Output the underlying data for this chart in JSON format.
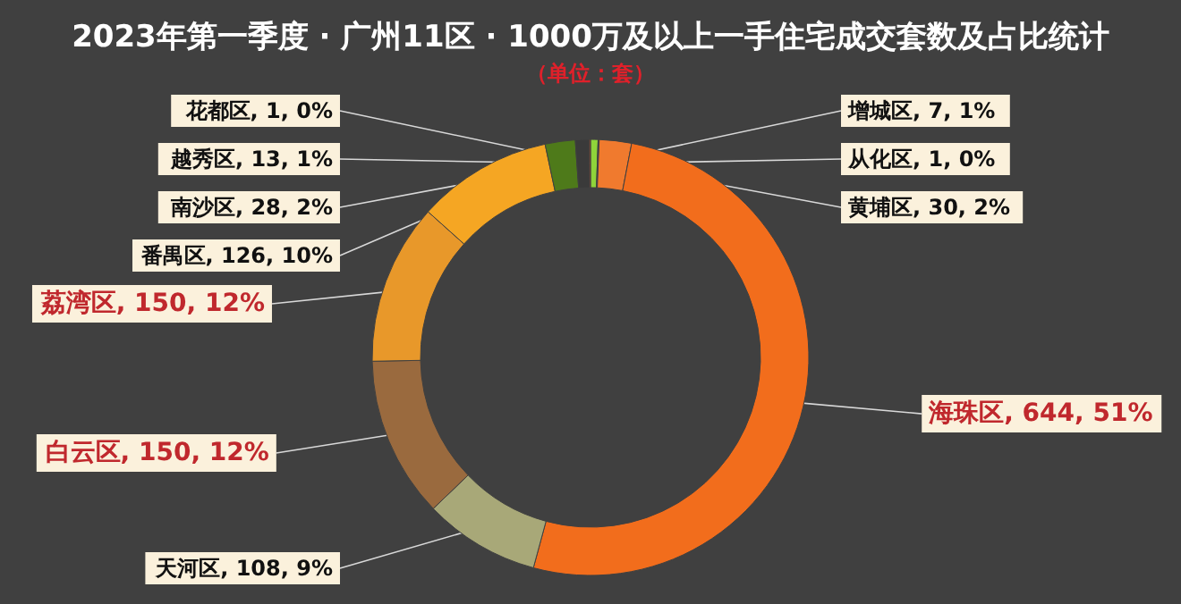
{
  "chart_data": {
    "type": "donut",
    "title": "2023年第一季度 · 广州11区 · 1000万及以上一手住宅成交套数及占比统计",
    "subtitle": "（单位：套）",
    "categories": [
      "增城区",
      "从化区",
      "黄埔区",
      "海珠区",
      "天河区",
      "白云区",
      "荔湾区",
      "番禺区",
      "南沙区",
      "越秀区",
      "花都区"
    ],
    "values": [
      7,
      1,
      30,
      644,
      108,
      150,
      150,
      126,
      28,
      13,
      1
    ],
    "value_labels": [
      "7, 1%",
      "1, 0%",
      "30, 2%",
      "644, 51%",
      "108, 9%",
      "150, 12%",
      "150, 12%",
      "126, 10%",
      "28, 2%",
      "13, 1%",
      "1, 0%"
    ],
    "colors": [
      "#8fd43a",
      "#5a5a5a",
      "#f07a2e",
      "#f26d1c",
      "#a8a878",
      "#9a6a3e",
      "#e8982a",
      "#f5a623",
      "#4e7a1a",
      "#3a3a3a",
      "#c0501a"
    ],
    "legend": false
  }
}
